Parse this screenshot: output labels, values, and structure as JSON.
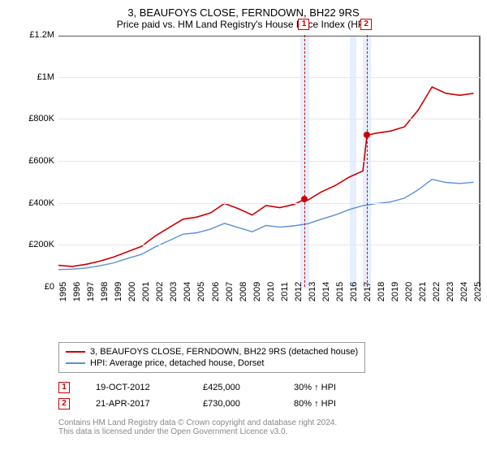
{
  "title": "3, BEAUFOYS CLOSE, FERNDOWN, BH22 9RS",
  "subtitle": "Price paid vs. HM Land Registry's House Price Index (HPI)",
  "chart": {
    "type": "line",
    "xlim": [
      1995,
      2025.5
    ],
    "ylim": [
      0,
      1200000
    ],
    "yticks": [
      0,
      200000,
      400000,
      600000,
      800000,
      1000000,
      1200000
    ],
    "ytick_labels": [
      "£0",
      "£200K",
      "£400K",
      "£600K",
      "£800K",
      "£1M",
      "£1.2M"
    ],
    "xticks": [
      1995,
      1996,
      1997,
      1998,
      1999,
      2000,
      2001,
      2002,
      2003,
      2004,
      2005,
      2006,
      2007,
      2008,
      2009,
      2010,
      2011,
      2012,
      2013,
      2014,
      2015,
      2016,
      2017,
      2018,
      2019,
      2020,
      2021,
      2022,
      2023,
      2024,
      2025
    ],
    "grid_color": "#e8e8e8",
    "border_color": "#666666",
    "background_color": "#ffffff",
    "band_color": "#e6efff",
    "sale_line_color": "#cc0000",
    "series": [
      {
        "name": "property",
        "label": "3, BEAUFOYS CLOSE, FERNDOWN, BH22 9RS (detached house)",
        "color": "#cc0000",
        "width": 1.6,
        "data": [
          [
            1995,
            110000
          ],
          [
            1996,
            105000
          ],
          [
            1997,
            115000
          ],
          [
            1998,
            130000
          ],
          [
            1999,
            150000
          ],
          [
            2000,
            175000
          ],
          [
            2001,
            200000
          ],
          [
            2002,
            250000
          ],
          [
            2003,
            290000
          ],
          [
            2004,
            330000
          ],
          [
            2005,
            340000
          ],
          [
            2006,
            360000
          ],
          [
            2007,
            405000
          ],
          [
            2008,
            380000
          ],
          [
            2009,
            350000
          ],
          [
            2010,
            395000
          ],
          [
            2011,
            385000
          ],
          [
            2012,
            400000
          ],
          [
            2012.8,
            425000
          ],
          [
            2013,
            420000
          ],
          [
            2014,
            460000
          ],
          [
            2015,
            490000
          ],
          [
            2016,
            530000
          ],
          [
            2017,
            560000
          ],
          [
            2017.3,
            730000
          ],
          [
            2018,
            740000
          ],
          [
            2019,
            750000
          ],
          [
            2020,
            770000
          ],
          [
            2021,
            850000
          ],
          [
            2022,
            960000
          ],
          [
            2023,
            930000
          ],
          [
            2024,
            920000
          ],
          [
            2025,
            930000
          ]
        ]
      },
      {
        "name": "hpi",
        "label": "HPI: Average price, detached house, Dorset",
        "color": "#5b8fd6",
        "width": 1.4,
        "data": [
          [
            1995,
            90000
          ],
          [
            1996,
            92000
          ],
          [
            1997,
            97000
          ],
          [
            1998,
            108000
          ],
          [
            1999,
            122000
          ],
          [
            2000,
            143000
          ],
          [
            2001,
            162000
          ],
          [
            2002,
            198000
          ],
          [
            2003,
            228000
          ],
          [
            2004,
            258000
          ],
          [
            2005,
            265000
          ],
          [
            2006,
            283000
          ],
          [
            2007,
            310000
          ],
          [
            2008,
            290000
          ],
          [
            2009,
            270000
          ],
          [
            2010,
            300000
          ],
          [
            2011,
            292000
          ],
          [
            2012,
            298000
          ],
          [
            2013,
            308000
          ],
          [
            2014,
            330000
          ],
          [
            2015,
            350000
          ],
          [
            2016,
            375000
          ],
          [
            2017,
            395000
          ],
          [
            2018,
            405000
          ],
          [
            2019,
            412000
          ],
          [
            2020,
            430000
          ],
          [
            2021,
            470000
          ],
          [
            2022,
            520000
          ],
          [
            2023,
            505000
          ],
          [
            2024,
            500000
          ],
          [
            2025,
            506000
          ]
        ]
      }
    ],
    "sale_bands": [
      {
        "start": 2012.5,
        "end": 2013.1
      },
      {
        "start": 2016.05,
        "end": 2016.55
      },
      {
        "start": 2017.0,
        "end": 2017.6
      }
    ],
    "sale_markers": [
      {
        "num": "1",
        "x": 2012.8,
        "y": 425000,
        "dot_color": "#cc0000"
      },
      {
        "num": "2",
        "x": 2017.3,
        "y": 730000,
        "dot_color": "#cc0000"
      }
    ]
  },
  "legend": {
    "items": [
      {
        "color": "#cc0000",
        "label": "3, BEAUFOYS CLOSE, FERNDOWN, BH22 9RS (detached house)"
      },
      {
        "color": "#5b8fd6",
        "label": "HPI: Average price, detached house, Dorset"
      }
    ]
  },
  "sales": [
    {
      "num": "1",
      "date": "19-OCT-2012",
      "price": "£425,000",
      "delta": "30% ↑ HPI"
    },
    {
      "num": "2",
      "date": "21-APR-2017",
      "price": "£730,000",
      "delta": "80% ↑ HPI"
    }
  ],
  "footer": {
    "line1": "Contains HM Land Registry data © Crown copyright and database right 2024.",
    "line2": "This data is licensed under the Open Government Licence v3.0."
  }
}
